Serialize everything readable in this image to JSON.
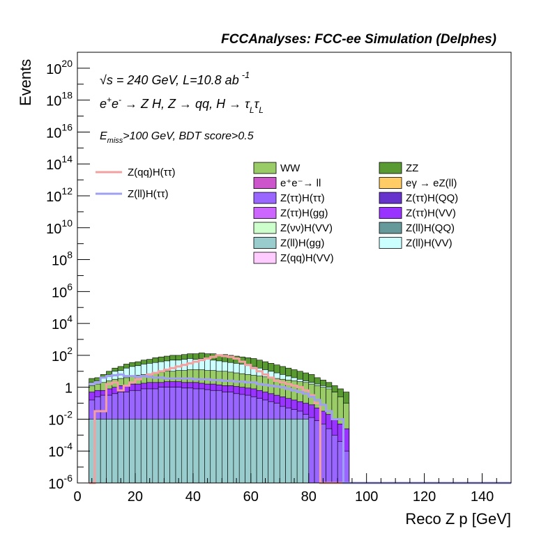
{
  "header": {
    "title": "FCCAnalyses: FCC-ee Simulation (Delphes)"
  },
  "annotations": {
    "line1_sqrt": "√s",
    "line1_rest": " = 240 GeV, L=10.8 ab",
    "line1_exp": "-1",
    "line2_main": "e",
    "line2_sup1": "+",
    "line2_e2": "e",
    "line2_sup2": "-",
    "line2_proc": " → Z H, Z  → qq, H  → τ",
    "line2_sub1": "L",
    "line2_tau2": "τ",
    "line2_sub2": "L",
    "line3_e": "E",
    "line3_sub": "miss",
    "line3_rest": ">100 GeV, BDT score>0.5"
  },
  "chart_data": {
    "type": "histogram",
    "title": "FCCAnalyses: FCC-ee Simulation (Delphes)",
    "xlabel": "Reco Z p [GeV]",
    "ylabel": "Events",
    "xlim": [
      0,
      150
    ],
    "ylim_log10": [
      -6,
      21
    ],
    "log_y": true,
    "bin_width": 2,
    "x_ticks": [
      "0",
      "20",
      "40",
      "60",
      "80",
      "100",
      "120",
      "140"
    ],
    "y_ticks": [
      {
        "exp": -6,
        "base": "10",
        "sup": "-6"
      },
      {
        "exp": -4,
        "base": "10",
        "sup": "-4"
      },
      {
        "exp": -2,
        "base": "10",
        "sup": "-2"
      },
      {
        "exp": 0,
        "base": "1",
        "sup": ""
      },
      {
        "exp": 2,
        "base": "10",
        "sup": "2"
      },
      {
        "exp": 4,
        "base": "10",
        "sup": "4"
      },
      {
        "exp": 6,
        "base": "10",
        "sup": "6"
      },
      {
        "exp": 8,
        "base": "10",
        "sup": "8"
      },
      {
        "exp": 10,
        "base": "10",
        "sup": "10"
      },
      {
        "exp": 12,
        "base": "10",
        "sup": "12"
      },
      {
        "exp": 14,
        "base": "10",
        "sup": "14"
      },
      {
        "exp": 16,
        "base": "10",
        "sup": "16"
      },
      {
        "exp": 18,
        "base": "10",
        "sup": "18"
      },
      {
        "exp": 20,
        "base": "10",
        "sup": "20"
      }
    ],
    "stack_layers_log10_top": {
      "x_start": 4,
      "note_range": "bins from 4 to 94 GeV",
      "ZZ": [
        0.55,
        0.6,
        0.8,
        1.0,
        1.2,
        1.3,
        1.45,
        1.55,
        1.6,
        1.7,
        1.75,
        1.85,
        1.9,
        1.95,
        2.0,
        2.0,
        2.05,
        2.1,
        2.1,
        2.15,
        2.1,
        2.1,
        2.05,
        2.05,
        2.0,
        1.95,
        1.9,
        1.85,
        1.8,
        1.7,
        1.6,
        1.5,
        1.4,
        1.3,
        1.2,
        1.1,
        1.0,
        0.9,
        0.8,
        0.6,
        0.45,
        0.3,
        0.1,
        -0.1,
        -0.3
      ],
      "ZllHVV": [
        0.3,
        0.4,
        0.6,
        0.8,
        1.0,
        1.05,
        1.2,
        1.3,
        1.35,
        1.45,
        1.5,
        1.55,
        1.6,
        1.65,
        1.7,
        1.7,
        1.75,
        1.8,
        1.75,
        1.8,
        1.75,
        1.7,
        1.65,
        1.6,
        1.55,
        1.5,
        1.45,
        1.35,
        1.3,
        1.2,
        1.1,
        1.0,
        0.9,
        0.8,
        0.7,
        0.6,
        0.5,
        0.4,
        0.3,
        0.2,
        0.1,
        0.0,
        -0.3,
        -0.8,
        -1.5
      ],
      "WW": [
        0.1,
        0.2,
        0.3,
        0.4,
        0.5,
        0.55,
        0.6,
        0.7,
        0.75,
        0.8,
        0.85,
        0.9,
        0.95,
        1.0,
        1.0,
        1.05,
        1.05,
        1.1,
        1.1,
        1.1,
        1.05,
        1.05,
        1.0,
        1.0,
        0.95,
        0.9,
        0.85,
        0.8,
        0.75,
        0.7,
        0.65,
        0.6,
        0.55,
        0.5,
        0.45,
        0.4,
        0.35,
        0.3,
        0.2,
        0.1,
        0.0,
        -0.1,
        -0.3,
        -0.6,
        -1.0
      ],
      "ZttHVV": [
        -0.3,
        -0.2,
        -0.2,
        -0.1,
        0.0,
        0.1,
        0.1,
        0.2,
        0.2,
        0.25,
        0.3,
        0.3,
        0.3,
        0.35,
        0.35,
        0.35,
        0.3,
        0.3,
        0.3,
        0.25,
        0.2,
        0.2,
        0.15,
        0.1,
        0.1,
        0.05,
        0.0,
        -0.05,
        -0.1,
        -0.2,
        -0.3,
        -0.4,
        -0.5,
        -0.6,
        -0.7,
        -0.8,
        -0.9,
        -1.0,
        -1.1,
        -1.3,
        -1.5,
        -1.7,
        -2.0,
        -2.3,
        -2.6
      ],
      "ZttHtt": [
        -0.8,
        -0.6,
        -0.5,
        -0.5,
        -0.4,
        -0.3,
        -0.3,
        -0.2,
        -0.2,
        -0.1,
        -0.1,
        -0.1,
        0.0,
        0.0,
        0.0,
        0.0,
        -0.05,
        -0.05,
        -0.1,
        -0.1,
        -0.15,
        -0.2,
        -0.2,
        -0.3,
        -0.3,
        -0.4,
        -0.45,
        -0.5,
        -0.6,
        -0.7,
        -0.8,
        -0.9,
        -1.0,
        -1.2,
        -1.3,
        -1.4,
        -1.5,
        -1.7,
        -1.9,
        -2.1,
        -2.3,
        -2.6,
        -3.0,
        -3.4,
        -4.0
      ],
      "ZllHgg": [
        -2.0,
        -2.0,
        -2.0,
        -2.0,
        -2.0,
        -2.0,
        -2.0,
        -2.0,
        -2.0,
        -2.0,
        -2.0,
        -2.0,
        -2.0,
        -2.0,
        -2.0,
        -2.0,
        -2.0,
        -2.0,
        -2.0,
        -2.0,
        -2.0,
        -2.0,
        -2.0,
        -2.0,
        -2.0,
        -2.0,
        -2.0,
        -2.0,
        -2.0,
        -2.0,
        -2.0,
        -2.0,
        -2.0,
        -2.0,
        -2.0,
        -2.0,
        -2.0,
        -2.0,
        -6,
        -6,
        -6,
        -6,
        -6,
        -6,
        -6
      ]
    },
    "series": [
      {
        "name": "Z(qq)H(ττ)",
        "kind": "line",
        "color": "#f2a0a0",
        "x_start": 4,
        "log10_values": [
          -6,
          -1.5,
          -1.5,
          0.2,
          0.3,
          -0.2,
          0.1,
          0.3,
          0.5,
          0.7,
          0.8,
          0.9,
          1.0,
          1.1,
          1.2,
          1.3,
          1.4,
          1.5,
          1.6,
          1.7,
          1.8,
          1.9,
          2.0,
          1.95,
          1.9,
          1.8,
          1.6,
          1.4,
          1.2,
          1.0,
          0.8,
          0.6,
          0.4,
          0.3,
          0.2,
          0.1,
          0.0,
          -0.2,
          -0.5,
          -1.0,
          -6,
          -6,
          -6,
          -6,
          -6
        ]
      },
      {
        "name": "Z(ll)H(ττ)",
        "kind": "line",
        "color": "#a0a0f2",
        "x_start": 4,
        "log10_values": [
          0.2,
          0.3,
          0.6,
          0.7,
          0.75,
          0.8,
          0.7,
          0.7,
          0.65,
          0.7,
          0.65,
          0.6,
          0.6,
          0.55,
          0.55,
          0.55,
          0.55,
          0.55,
          0.5,
          0.5,
          0.5,
          0.45,
          0.45,
          0.4,
          0.4,
          0.35,
          0.35,
          0.3,
          0.3,
          0.2,
          0.15,
          0.1,
          0.05,
          0.0,
          -0.1,
          -0.2,
          -0.3,
          -0.4,
          -0.6,
          -0.8,
          -1.1,
          -1.5,
          -2.0,
          -2.0,
          -6
        ]
      }
    ],
    "legend": {
      "signals": [
        {
          "name": "Z(qq)H(ττ)",
          "color": "#f2a0a0"
        },
        {
          "name": "Z(ll)H(ττ)",
          "color": "#a0a0f2"
        }
      ],
      "backgrounds": [
        {
          "name": "WW",
          "color": "#99cc66"
        },
        {
          "name": "ZZ",
          "color": "#5a9a32"
        },
        {
          "name": "e⁺e⁻→ ll",
          "color": "#cc55cc"
        },
        {
          "name": "eγ → eZ(ll)",
          "color": "#ffcc66"
        },
        {
          "name": "Z(ττ)H(ττ)",
          "color": "#9966ff"
        },
        {
          "name": "Z(ττ)H(QQ)",
          "color": "#6633cc"
        },
        {
          "name": "Z(ττ)H(gg)",
          "color": "#cc66ff"
        },
        {
          "name": "Z(ττ)H(VV)",
          "color": "#9933ff"
        },
        {
          "name": "Z(νν)H(VV)",
          "color": "#ccffcc"
        },
        {
          "name": "Z(ll)H(QQ)",
          "color": "#669999"
        },
        {
          "name": "Z(ll)H(gg)",
          "color": "#99cccc"
        },
        {
          "name": "Z(ll)H(VV)",
          "color": "#ccffff"
        },
        {
          "name": "Z(qq)H(VV)",
          "color": "#ffccff"
        }
      ]
    }
  }
}
